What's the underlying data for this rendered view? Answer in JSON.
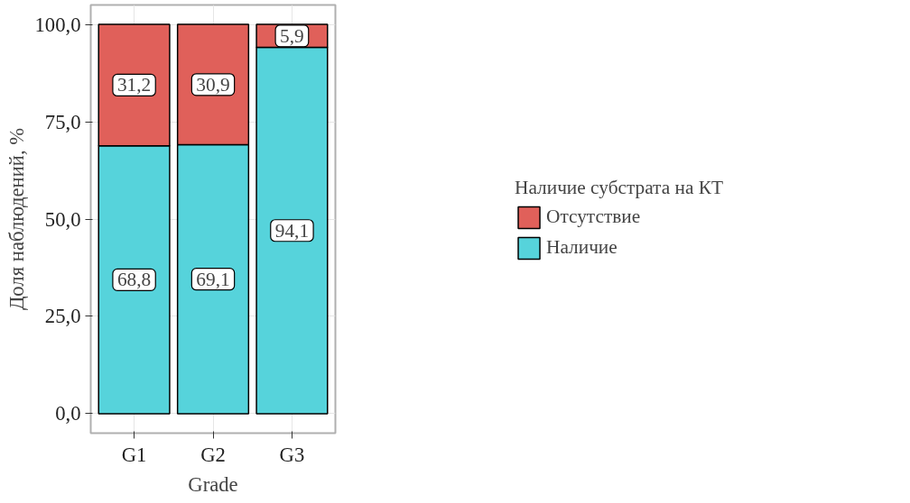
{
  "chart_data": {
    "type": "bar",
    "stacked": true,
    "xlabel": "Grade",
    "ylabel": "Доля наблюдений, %",
    "legend_title": "Наличие субстрата на КТ",
    "legend": "right",
    "grid": true,
    "categories": [
      "G1",
      "G2",
      "G3"
    ],
    "series": [
      {
        "name": "Наличие",
        "color": "#56d3db",
        "values": [
          68.8,
          69.1,
          94.1
        ],
        "value_labels": [
          "68,8",
          "69,1",
          "94,1"
        ]
      },
      {
        "name": "Отсутствие",
        "color": "#e0605a",
        "values": [
          31.2,
          30.9,
          5.9
        ],
        "value_labels": [
          "31,2",
          "30,9",
          "5,9"
        ]
      }
    ],
    "ylim": [
      -5,
      105
    ],
    "yticks": [
      {
        "value": 0,
        "label": "0,0"
      },
      {
        "value": 25,
        "label": "25,0"
      },
      {
        "value": 50,
        "label": "50,0"
      },
      {
        "value": 75,
        "label": "75,0"
      },
      {
        "value": 100,
        "label": "100,0"
      }
    ]
  }
}
